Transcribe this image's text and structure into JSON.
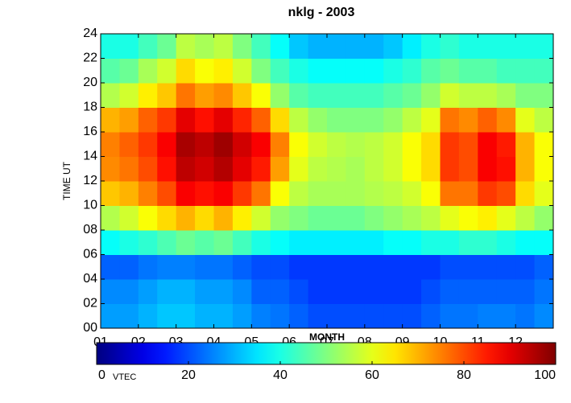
{
  "chart_data": {
    "type": "heatmap",
    "title": "nklg - 2003",
    "x_label": "MONTH",
    "y_label": "TIME UT",
    "xlim": [
      0,
      12
    ],
    "ylim": [
      0,
      24
    ],
    "xticks": [
      {
        "value": 0,
        "label": "01"
      },
      {
        "value": 1,
        "label": "02"
      },
      {
        "value": 2,
        "label": "03"
      },
      {
        "value": 3,
        "label": "04"
      },
      {
        "value": 4,
        "label": "05"
      },
      {
        "value": 5,
        "label": "06"
      },
      {
        "value": 6,
        "label": "07"
      },
      {
        "value": 7,
        "label": "08"
      },
      {
        "value": 8,
        "label": "09"
      },
      {
        "value": 9,
        "label": "10"
      },
      {
        "value": 10,
        "label": "11"
      },
      {
        "value": 11,
        "label": "12"
      }
    ],
    "yticks": [
      {
        "value": 0,
        "label": "00"
      },
      {
        "value": 2,
        "label": "02"
      },
      {
        "value": 4,
        "label": "04"
      },
      {
        "value": 6,
        "label": "06"
      },
      {
        "value": 8,
        "label": "08"
      },
      10,
      12,
      14,
      16,
      18,
      20,
      22,
      24
    ],
    "xbins": [
      0,
      0.5,
      1,
      1.5,
      2,
      2.5,
      3,
      3.5,
      4,
      4.5,
      5,
      5.5,
      6,
      6.5,
      7,
      7.5,
      8,
      8.5,
      9,
      9.5,
      10,
      10.5,
      11,
      11.5,
      12
    ],
    "ybins": [
      0,
      2,
      4,
      6,
      8,
      10,
      12,
      14,
      16,
      18,
      20,
      22,
      24
    ],
    "values": [
      [
        28,
        28,
        30,
        32,
        32,
        30,
        30,
        28,
        25,
        24,
        22,
        20,
        20,
        20,
        20,
        20,
        20,
        22,
        24,
        24,
        25,
        25,
        24,
        26
      ],
      [
        26,
        26,
        28,
        30,
        30,
        28,
        28,
        26,
        22,
        22,
        20,
        18,
        18,
        18,
        18,
        18,
        18,
        20,
        22,
        22,
        22,
        22,
        22,
        24
      ],
      [
        22,
        22,
        24,
        25,
        25,
        24,
        24,
        22,
        20,
        20,
        18,
        18,
        18,
        18,
        18,
        18,
        18,
        18,
        20,
        20,
        20,
        20,
        20,
        22
      ],
      [
        38,
        40,
        42,
        45,
        48,
        46,
        48,
        44,
        40,
        38,
        36,
        36,
        36,
        36,
        36,
        38,
        38,
        40,
        40,
        42,
        42,
        40,
        38,
        38
      ],
      [
        55,
        58,
        62,
        66,
        70,
        66,
        70,
        64,
        58,
        52,
        50,
        48,
        48,
        48,
        50,
        52,
        54,
        56,
        60,
        62,
        64,
        60,
        56,
        52
      ],
      [
        68,
        70,
        75,
        80,
        88,
        86,
        88,
        82,
        76,
        62,
        56,
        54,
        54,
        54,
        55,
        56,
        58,
        62,
        76,
        76,
        82,
        80,
        66,
        60
      ],
      [
        74,
        76,
        80,
        86,
        94,
        92,
        95,
        90,
        85,
        72,
        60,
        56,
        55,
        54,
        56,
        58,
        62,
        66,
        82,
        80,
        88,
        86,
        70,
        62
      ],
      [
        75,
        78,
        82,
        88,
        96,
        94,
        97,
        92,
        88,
        75,
        62,
        58,
        56,
        55,
        56,
        58,
        62,
        66,
        82,
        80,
        88,
        85,
        70,
        62
      ],
      [
        70,
        72,
        78,
        82,
        90,
        86,
        90,
        84,
        78,
        66,
        56,
        52,
        50,
        50,
        50,
        52,
        56,
        60,
        76,
        74,
        78,
        74,
        60,
        56
      ],
      [
        55,
        58,
        64,
        68,
        76,
        72,
        74,
        68,
        62,
        52,
        46,
        44,
        44,
        44,
        44,
        46,
        48,
        52,
        58,
        56,
        56,
        54,
        50,
        50
      ],
      [
        46,
        48,
        54,
        58,
        66,
        62,
        64,
        58,
        50,
        44,
        40,
        38,
        38,
        38,
        38,
        40,
        42,
        46,
        48,
        46,
        46,
        44,
        44,
        44
      ],
      [
        40,
        40,
        44,
        48,
        56,
        54,
        56,
        50,
        44,
        38,
        32,
        30,
        30,
        30,
        30,
        32,
        36,
        40,
        42,
        40,
        40,
        40,
        40,
        40
      ]
    ],
    "colormap": "jet",
    "clim": [
      0,
      100
    ],
    "cticks": [
      0,
      20,
      40,
      60,
      80,
      100
    ],
    "colorbar_label": "VTEC"
  }
}
